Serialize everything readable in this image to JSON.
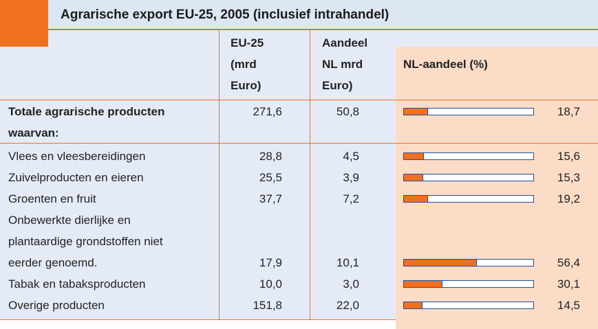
{
  "title": "Agrarische export EU-25, 2005 (inclusief intrahandel)",
  "table": {
    "headers": {
      "label": [],
      "eu": [
        "EU-25",
        "(mrd",
        "Euro)"
      ],
      "nl": [
        "Aandeel",
        "NL mrd",
        "Euro)"
      ],
      "share": [
        "NL-aandeel (%)"
      ]
    },
    "rows": [
      {
        "label": [
          "Totale agrarische producten",
          "waarvan:"
        ],
        "eu": "271,6",
        "nl": "50,8"
      },
      {
        "label": [
          "Vlees en vleesbereidingen"
        ],
        "eu": "28,8",
        "nl": "4,5"
      },
      {
        "label": [
          "Zuivelproducten en eieren"
        ],
        "eu": "25,5",
        "nl": "3,9"
      },
      {
        "label": [
          "Groenten en fruit"
        ],
        "eu": "37,7",
        "nl": "7,2"
      },
      {
        "label": [
          "Onbewerkte dierlijke en",
          "plantaardige grondstoffen niet",
          "eerder genoemd."
        ],
        "eu": "17,9",
        "nl": "10,1"
      },
      {
        "label": [
          "Tabak en tabaksproducten"
        ],
        "eu": "10,0",
        "nl": "3,0"
      },
      {
        "label": [
          "Overige producten"
        ],
        "eu": "151,8",
        "nl": "22,0"
      }
    ],
    "share": {
      "values": [
        18.7,
        15.6,
        15.3,
        19.2,
        56.4,
        30.1,
        14.5
      ],
      "value_labels": [
        "18,7",
        "15,6",
        "15,3",
        "19,2",
        "56,4",
        "30,1",
        "14,5"
      ],
      "xlim": [
        0,
        100
      ],
      "color": "#f07022"
    }
  }
}
